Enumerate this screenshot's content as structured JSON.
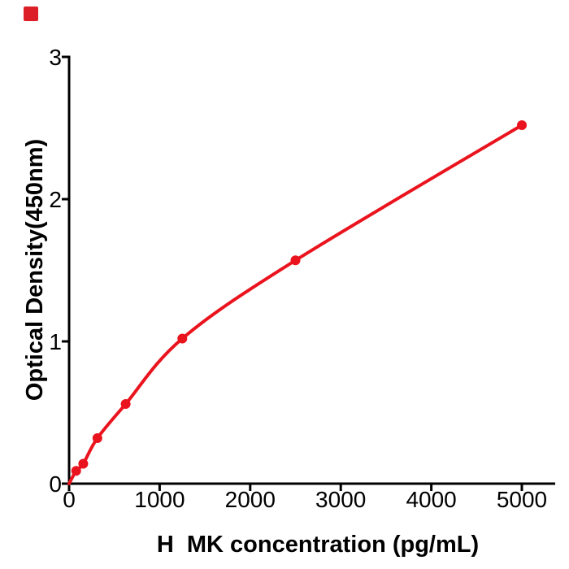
{
  "figure": {
    "background": "#ffffff",
    "corner_marker_color": "#dc1f26"
  },
  "chart_data": {
    "type": "scatter",
    "has_fit_line": true,
    "title": "",
    "xlabel": "H  MK concentration (pg/mL)",
    "ylabel": "Optical Density(450nm)",
    "xlim": [
      0,
      5370
    ],
    "ylim": [
      0,
      3
    ],
    "x_ticks": [
      0,
      1000,
      2000,
      3000,
      4000,
      5000
    ],
    "y_ticks": [
      0,
      1,
      2,
      3
    ],
    "curve_start": {
      "x": 0,
      "y": 0
    },
    "points": [
      {
        "x": 78,
        "y": 0.09
      },
      {
        "x": 156,
        "y": 0.14
      },
      {
        "x": 312,
        "y": 0.32
      },
      {
        "x": 625,
        "y": 0.56
      },
      {
        "x": 1250,
        "y": 1.02
      },
      {
        "x": 2500,
        "y": 1.57
      },
      {
        "x": 5000,
        "y": 2.52
      }
    ],
    "accent_color": "#ea141e",
    "axis_color": "#000000",
    "legend": null,
    "grid": false
  }
}
